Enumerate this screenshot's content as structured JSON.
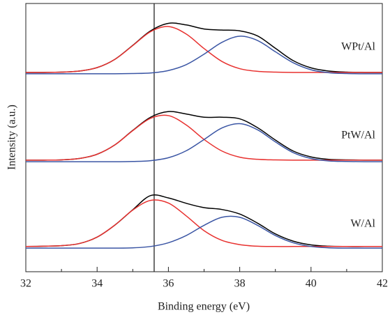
{
  "chart_data": {
    "type": "line",
    "xlabel": "Binding energy (eV)",
    "ylabel": "Intensity (a.u.)",
    "xlim": [
      32,
      42
    ],
    "ylim": [
      0,
      100
    ],
    "xticks": [
      32,
      34,
      36,
      38,
      40,
      42
    ],
    "xminorticks": [
      33,
      35,
      37,
      39,
      41
    ],
    "reference_line": 35.6,
    "labels": [
      "WPt/Al",
      "PtW/Al",
      "W/Al"
    ],
    "x": [
      32,
      32.5,
      33,
      33.5,
      34,
      34.5,
      35,
      35.5,
      36,
      36.5,
      37,
      37.5,
      38,
      38.5,
      39,
      39.5,
      40,
      40.5,
      41,
      41.5,
      42
    ],
    "series": [
      {
        "color": "#000000",
        "values": [
          9.4,
          9.5,
          9.7,
          10.5,
          12.9,
          17.4,
          23.1,
          28.4,
          27.5,
          25.5,
          23.9,
          23.2,
          21.5,
          18.1,
          14.1,
          11.4,
          10.0,
          9.5,
          9.4,
          9.4,
          9.4
        ]
      },
      {
        "color": "#e8312f",
        "values": [
          9.4,
          9.5,
          9.7,
          10.5,
          12.9,
          17.4,
          23.0,
          26.6,
          25.6,
          20.8,
          15.3,
          11.7,
          10.1,
          9.5,
          9.4,
          9.4,
          9.4,
          9.4,
          9.4,
          9.4,
          9.4
        ]
      },
      {
        "color": "#3a55a4",
        "values": [
          8.8,
          8.8,
          8.8,
          8.8,
          8.8,
          8.8,
          8.9,
          9.4,
          10.8,
          13.5,
          17.3,
          20.3,
          20.3,
          17.3,
          13.5,
          10.8,
          9.4,
          8.9,
          8.8,
          8.8,
          8.8
        ]
      },
      {
        "color": "#000000",
        "values": [
          41.6,
          41.6,
          41.7,
          42.2,
          43.8,
          47.3,
          52.7,
          57.6,
          59.7,
          58.8,
          57.6,
          57.6,
          57.0,
          53.7,
          49.1,
          45.0,
          42.8,
          41.9,
          41.7,
          41.6,
          41.6
        ]
      },
      {
        "color": "#e8312f",
        "values": [
          41.6,
          41.6,
          41.7,
          42.2,
          43.8,
          47.3,
          52.6,
          57.2,
          58.2,
          54.7,
          49.3,
          45.0,
          42.7,
          41.9,
          41.7,
          41.6,
          41.6,
          41.6,
          41.6,
          41.6,
          41.6
        ]
      },
      {
        "color": "#3a55a4",
        "values": [
          41.0,
          41.0,
          41.0,
          41.0,
          41.0,
          41.0,
          41.1,
          41.4,
          42.5,
          45.1,
          49.3,
          53.6,
          55.2,
          52.9,
          48.4,
          44.4,
          42.2,
          41.3,
          41.1,
          41.0,
          41.0
        ]
      },
      {
        "color": "#000000",
        "values": [
          74.3,
          74.3,
          74.4,
          74.8,
          76.1,
          79.2,
          84.4,
          89.8,
          92.6,
          92.0,
          90.5,
          90.1,
          89.8,
          87.9,
          83.3,
          78.7,
          76.0,
          74.8,
          74.4,
          74.3,
          74.3
        ]
      },
      {
        "color": "#e8312f",
        "values": [
          74.3,
          74.3,
          74.4,
          74.8,
          76.1,
          79.2,
          84.3,
          89.5,
          91.4,
          88.6,
          83.2,
          78.4,
          75.7,
          74.7,
          74.4,
          74.3,
          74.3,
          74.3,
          74.3,
          74.3,
          74.3
        ]
      },
      {
        "color": "#3a55a4",
        "values": [
          73.8,
          73.8,
          73.8,
          73.8,
          73.8,
          73.8,
          73.9,
          74.1,
          75.0,
          77.2,
          81.1,
          85.5,
          87.8,
          86.2,
          82.0,
          77.9,
          75.3,
          74.2,
          73.9,
          73.8,
          73.8
        ]
      }
    ]
  }
}
